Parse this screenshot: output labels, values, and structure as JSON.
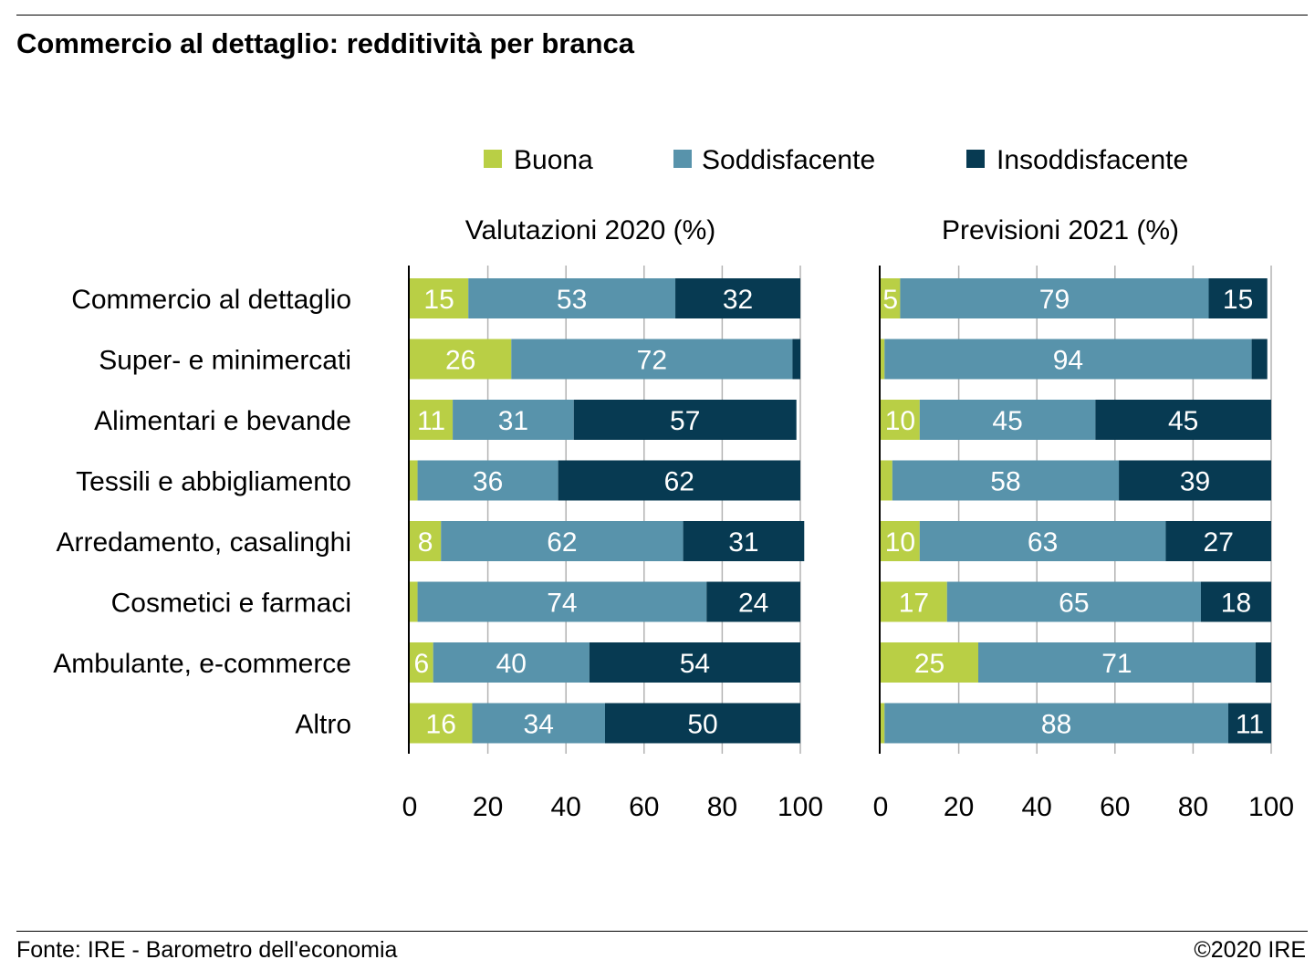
{
  "title": "Commercio al dettaglio: redditività per branca",
  "source": "Fonte: IRE - Barometro dell'economia",
  "copyright": "©2020 IRE",
  "colors": {
    "buona": "#b9cf45",
    "soddisfacente": "#5893ab",
    "insoddisfacente": "#073a52",
    "grid": "#b3b3b3"
  },
  "chart_data": {
    "type": "bar",
    "orientation": "horizontal",
    "stacked": true,
    "legend": [
      "Buona",
      "Soddisfacente",
      "Insoddisfacente"
    ],
    "legend_position": "top",
    "categories": [
      "Commercio al dettaglio",
      "Super- e minimercati",
      "Alimentari e bevande",
      "Tessili e abbigliamento",
      "Arredamento, casalinghi",
      "Cosmetici e farmaci",
      "Ambulante, e-commerce",
      "Altro"
    ],
    "xlim": [
      0,
      100
    ],
    "xticks": [
      0,
      20,
      40,
      60,
      80,
      100
    ],
    "grid": true,
    "panels": [
      {
        "title": "Valutazioni 2020 (%)",
        "series": [
          {
            "name": "Buona",
            "values": [
              15,
              26,
              11,
              2,
              8,
              2,
              6,
              16
            ]
          },
          {
            "name": "Soddisfacente",
            "values": [
              53,
              72,
              31,
              36,
              62,
              74,
              40,
              34
            ]
          },
          {
            "name": "Insoddisfacente",
            "values": [
              32,
              2,
              57,
              62,
              31,
              24,
              54,
              50
            ]
          }
        ],
        "labels": [
          [
            "15",
            "53",
            "32"
          ],
          [
            "26",
            "72",
            ""
          ],
          [
            "11",
            "31",
            "57"
          ],
          [
            "",
            "36",
            "62"
          ],
          [
            "8",
            "62",
            "31"
          ],
          [
            "",
            "74",
            "24"
          ],
          [
            "6",
            "40",
            "54"
          ],
          [
            "16",
            "34",
            "50"
          ]
        ]
      },
      {
        "title": "Previsioni 2021 (%)",
        "series": [
          {
            "name": "Buona",
            "values": [
              5,
              1,
              10,
              3,
              10,
              17,
              25,
              1
            ]
          },
          {
            "name": "Soddisfacente",
            "values": [
              79,
              94,
              45,
              58,
              63,
              65,
              71,
              88
            ]
          },
          {
            "name": "Insoddisfacente",
            "values": [
              15,
              4,
              45,
              39,
              27,
              18,
              4,
              11
            ]
          }
        ],
        "labels": [
          [
            "5",
            "79",
            "15"
          ],
          [
            "",
            "94",
            ""
          ],
          [
            "10",
            "45",
            "45"
          ],
          [
            "",
            "58",
            "39"
          ],
          [
            "10",
            "63",
            "27"
          ],
          [
            "17",
            "65",
            "18"
          ],
          [
            "25",
            "71",
            ""
          ],
          [
            "",
            "88",
            "11"
          ]
        ]
      }
    ]
  }
}
